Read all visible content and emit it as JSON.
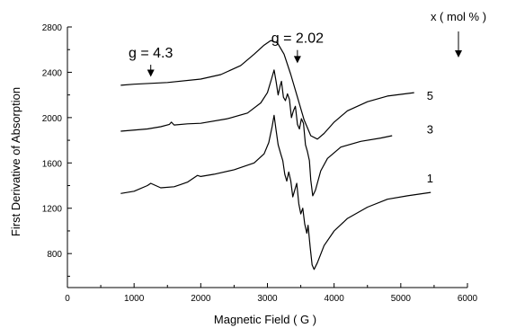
{
  "chart_data": {
    "type": "line",
    "xlabel": "Magnetic Field   ( G )",
    "ylabel": "First Derivative of Absorption",
    "xlim": [
      0,
      6000
    ],
    "ylim": [
      500,
      2800
    ],
    "xticks": [
      0,
      1000,
      2000,
      3000,
      4000,
      5000,
      6000
    ],
    "yticks": [
      800,
      1200,
      1600,
      2000,
      2400,
      2800
    ],
    "legend_title": "x ( mol % )",
    "annotations": [
      {
        "text": "g = 4.3",
        "x": 1250,
        "y": 2530,
        "arrow_to": [
          1250,
          2360
        ]
      },
      {
        "text": "g = 2.02",
        "x": 3450,
        "y": 2660,
        "arrow_to": [
          3450,
          2480
        ]
      }
    ],
    "series": [
      {
        "name": "5",
        "label_at": [
          4900,
          2190
        ],
        "points": [
          [
            800,
            2285
          ],
          [
            1000,
            2295
          ],
          [
            1500,
            2310
          ],
          [
            2000,
            2340
          ],
          [
            2300,
            2380
          ],
          [
            2600,
            2460
          ],
          [
            2800,
            2560
          ],
          [
            2950,
            2640
          ],
          [
            3050,
            2680
          ],
          [
            3150,
            2660
          ],
          [
            3250,
            2560
          ],
          [
            3350,
            2380
          ],
          [
            3450,
            2180
          ],
          [
            3550,
            1980
          ],
          [
            3650,
            1840
          ],
          [
            3750,
            1810
          ],
          [
            3850,
            1860
          ],
          [
            4000,
            1960
          ],
          [
            4200,
            2060
          ],
          [
            4500,
            2140
          ],
          [
            4800,
            2190
          ],
          [
            5200,
            2220
          ]
        ]
      },
      {
        "name": "3",
        "label_at": [
          4900,
          1890
        ],
        "points": [
          [
            800,
            1880
          ],
          [
            1200,
            1900
          ],
          [
            1400,
            1920
          ],
          [
            1530,
            1940
          ],
          [
            1560,
            1960
          ],
          [
            1600,
            1935
          ],
          [
            1800,
            1945
          ],
          [
            2000,
            1950
          ],
          [
            2400,
            1990
          ],
          [
            2700,
            2040
          ],
          [
            2900,
            2130
          ],
          [
            3000,
            2220
          ],
          [
            3060,
            2340
          ],
          [
            3100,
            2420
          ],
          [
            3130,
            2320
          ],
          [
            3160,
            2200
          ],
          [
            3190,
            2280
          ],
          [
            3210,
            2320
          ],
          [
            3240,
            2180
          ],
          [
            3270,
            2150
          ],
          [
            3300,
            2210
          ],
          [
            3330,
            2160
          ],
          [
            3360,
            2000
          ],
          [
            3390,
            2060
          ],
          [
            3420,
            2100
          ],
          [
            3450,
            1940
          ],
          [
            3480,
            1900
          ],
          [
            3510,
            1990
          ],
          [
            3540,
            1950
          ],
          [
            3570,
            1760
          ],
          [
            3600,
            1700
          ],
          [
            3630,
            1620
          ],
          [
            3650,
            1450
          ],
          [
            3680,
            1310
          ],
          [
            3720,
            1360
          ],
          [
            3800,
            1530
          ],
          [
            3900,
            1640
          ],
          [
            4100,
            1740
          ],
          [
            4400,
            1790
          ],
          [
            4700,
            1820
          ],
          [
            4870,
            1840
          ]
        ]
      },
      {
        "name": "1",
        "label_at": [
          4900,
          1460
        ],
        "points": [
          [
            800,
            1330
          ],
          [
            1000,
            1350
          ],
          [
            1200,
            1400
          ],
          [
            1250,
            1420
          ],
          [
            1400,
            1380
          ],
          [
            1600,
            1390
          ],
          [
            1700,
            1410
          ],
          [
            1800,
            1430
          ],
          [
            1900,
            1470
          ],
          [
            1950,
            1490
          ],
          [
            2000,
            1480
          ],
          [
            2200,
            1500
          ],
          [
            2500,
            1540
          ],
          [
            2800,
            1600
          ],
          [
            2950,
            1680
          ],
          [
            3020,
            1780
          ],
          [
            3070,
            1920
          ],
          [
            3100,
            2020
          ],
          [
            3130,
            1890
          ],
          [
            3160,
            1760
          ],
          [
            3200,
            1680
          ],
          [
            3230,
            1620
          ],
          [
            3260,
            1500
          ],
          [
            3290,
            1440
          ],
          [
            3320,
            1520
          ],
          [
            3350,
            1440
          ],
          [
            3380,
            1300
          ],
          [
            3410,
            1360
          ],
          [
            3440,
            1420
          ],
          [
            3470,
            1240
          ],
          [
            3500,
            1150
          ],
          [
            3530,
            1200
          ],
          [
            3560,
            1060
          ],
          [
            3590,
            980
          ],
          [
            3610,
            1050
          ],
          [
            3640,
            860
          ],
          [
            3670,
            700
          ],
          [
            3700,
            660
          ],
          [
            3750,
            720
          ],
          [
            3850,
            870
          ],
          [
            4000,
            1000
          ],
          [
            4200,
            1110
          ],
          [
            4500,
            1210
          ],
          [
            4800,
            1280
          ],
          [
            5100,
            1310
          ],
          [
            5450,
            1340
          ]
        ]
      }
    ]
  }
}
